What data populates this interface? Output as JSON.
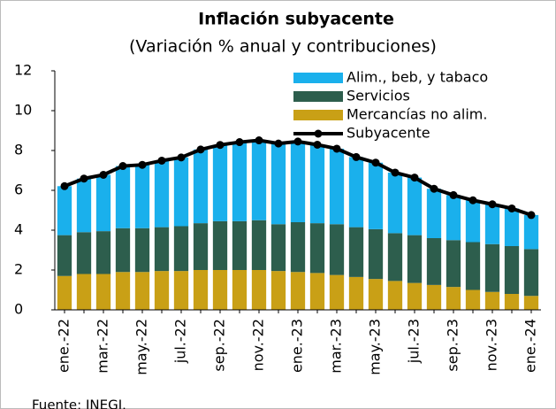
{
  "chart_data": {
    "type": "stacked_bar_line",
    "title": "Inflación subyacente",
    "subtitle": "(Variación % anual y contribuciones)",
    "source": "Fuente: INEGI.",
    "categories": [
      "ene.-22",
      null,
      "mar.-22",
      null,
      "may.-22",
      null,
      "jul.-22",
      null,
      "sep.-22",
      null,
      "nov.-22",
      null,
      "ene.-23",
      null,
      "mar.-23",
      null,
      "may.-23",
      null,
      "jul.-23",
      null,
      "sep.-23",
      null,
      "nov.-23",
      null,
      "ene.-24"
    ],
    "series": [
      {
        "name": "Mercancías no alim.",
        "color": "#c9a016",
        "values": [
          1.7,
          1.8,
          1.8,
          1.9,
          1.9,
          1.95,
          1.95,
          2.0,
          2.0,
          2.0,
          2.0,
          1.95,
          1.9,
          1.85,
          1.75,
          1.65,
          1.55,
          1.45,
          1.35,
          1.25,
          1.15,
          1.0,
          0.9,
          0.8,
          0.7
        ]
      },
      {
        "name": "Servicios",
        "color": "#2d5e4d",
        "values": [
          2.05,
          2.1,
          2.15,
          2.2,
          2.2,
          2.2,
          2.25,
          2.35,
          2.45,
          2.45,
          2.5,
          2.35,
          2.5,
          2.5,
          2.55,
          2.5,
          2.5,
          2.4,
          2.4,
          2.35,
          2.35,
          2.4,
          2.4,
          2.4,
          2.35
        ]
      },
      {
        "name": "Alim., beb, y tabaco",
        "color": "#1ab0ec",
        "values": [
          2.46,
          2.69,
          2.83,
          3.12,
          3.18,
          3.34,
          3.45,
          3.7,
          3.83,
          3.97,
          4.01,
          4.05,
          4.05,
          3.94,
          3.79,
          3.52,
          3.34,
          3.04,
          2.89,
          2.48,
          2.26,
          2.1,
          2.0,
          1.89,
          1.71
        ]
      },
      {
        "name": "Subyacente",
        "color": "#000000",
        "kind": "line",
        "values": [
          6.21,
          6.59,
          6.78,
          7.22,
          7.28,
          7.49,
          7.65,
          8.05,
          8.28,
          8.42,
          8.51,
          8.35,
          8.45,
          8.29,
          8.09,
          7.67,
          7.39,
          6.89,
          6.64,
          6.08,
          5.76,
          5.5,
          5.3,
          5.09,
          4.76
        ]
      }
    ],
    "legend_order": [
      2,
      1,
      0,
      3
    ],
    "ylim": [
      0,
      12
    ],
    "yticks": [
      0,
      2,
      4,
      6,
      8,
      10,
      12
    ]
  }
}
